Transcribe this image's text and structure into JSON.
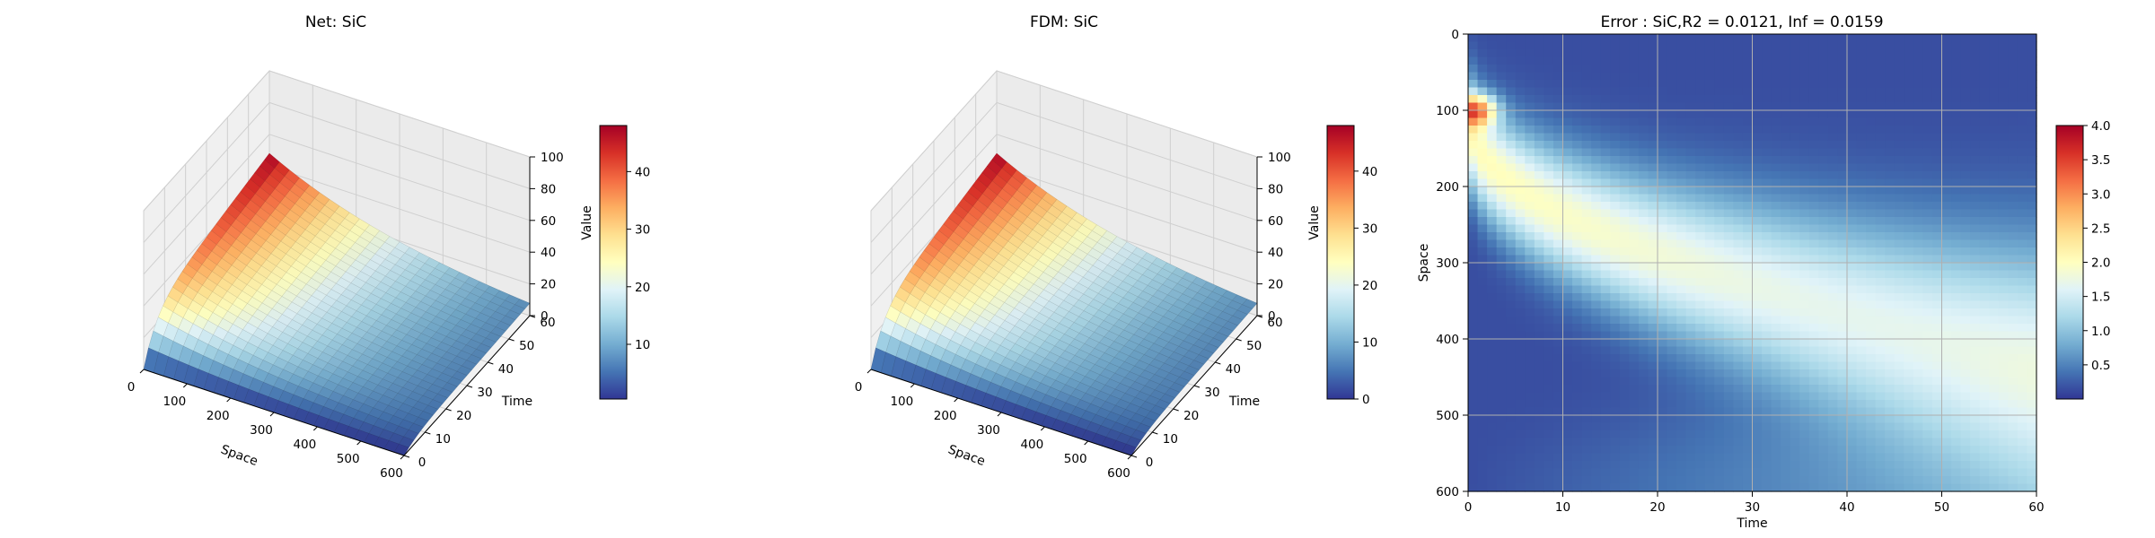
{
  "chart_data": [
    {
      "type": "surface3d",
      "title": "Net: SiC",
      "xlabel": "Space",
      "ylabel": "Time",
      "zlabel": "",
      "xticks": [
        0,
        100,
        200,
        300,
        400,
        500,
        600
      ],
      "yticks": [
        0,
        10,
        20,
        30,
        40,
        50,
        60
      ],
      "zticks": [
        0,
        20,
        40,
        60,
        80,
        100
      ],
      "xlim": [
        0,
        600
      ],
      "ylim": [
        0,
        60
      ],
      "zlim": [
        0,
        100
      ],
      "colorbar": {
        "label": "Value",
        "ticks": [
          10,
          20,
          30,
          40
        ],
        "range": [
          0.5,
          48
        ],
        "colormap": "RdYlBu_r"
      },
      "surface_model": {
        "source_time_scale": 6,
        "space_scale": 330,
        "peak_value": 48
      }
    },
    {
      "type": "surface3d",
      "title": "FDM: SiC",
      "xlabel": "Space",
      "ylabel": "Time",
      "zlabel": "",
      "xticks": [
        0,
        100,
        200,
        300,
        400,
        500,
        600
      ],
      "yticks": [
        0,
        10,
        20,
        30,
        40,
        50,
        60
      ],
      "zticks": [
        0,
        20,
        40,
        60,
        80,
        100
      ],
      "xlim": [
        0,
        600
      ],
      "ylim": [
        0,
        60
      ],
      "zlim": [
        0,
        100
      ],
      "colorbar": {
        "label": "Value",
        "ticks": [
          0,
          10,
          20,
          30,
          40
        ],
        "range": [
          0,
          48
        ],
        "colormap": "RdYlBu_r"
      },
      "surface_model": {
        "source_time_scale": 6,
        "space_scale": 330,
        "peak_value": 48
      }
    },
    {
      "type": "heatmap",
      "title": "Error : SiC,R2 = 0.0121, Inf = 0.0159",
      "xlabel": "Time",
      "ylabel": "Space",
      "xticks": [
        0,
        10,
        20,
        30,
        40,
        50,
        60
      ],
      "yticks": [
        0,
        100,
        200,
        300,
        400,
        500,
        600
      ],
      "xlim": [
        0,
        60
      ],
      "ylim": [
        600,
        0
      ],
      "grid": true,
      "colorbar": {
        "label": "",
        "ticks": [
          0.5,
          1.0,
          1.5,
          2.0,
          2.5,
          3.0,
          3.5,
          4.0
        ],
        "range": [
          0,
          4.0
        ],
        "colormap": "RdYlBu_r"
      },
      "error_model": {
        "peak_value": 4.0,
        "peak_space": 100,
        "hotspot_time": 1,
        "ridge_start_space": 110,
        "ridge_end_space": 420,
        "far_field_value": 0.7
      }
    }
  ]
}
